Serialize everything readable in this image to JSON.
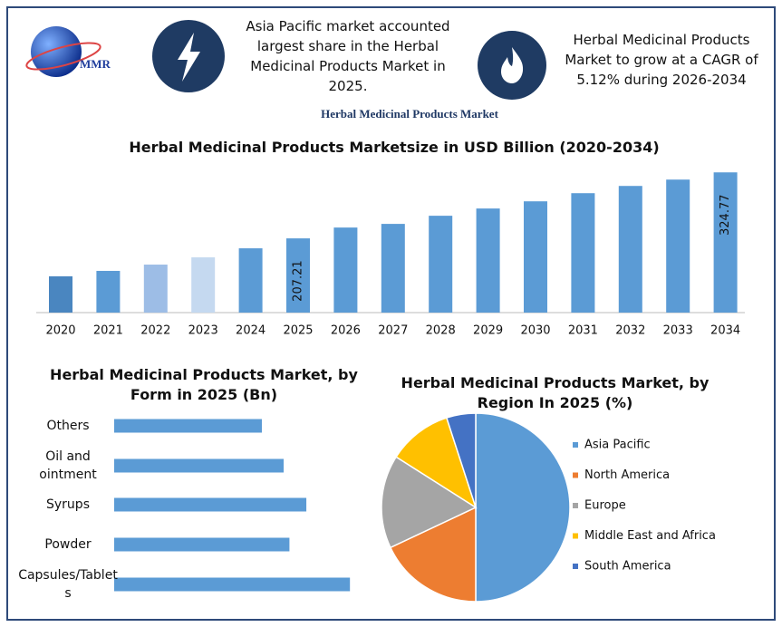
{
  "header": {
    "logo_text": "MMR",
    "stat1": "Asia Pacific market accounted largest share in the Herbal Medicinal Products Market in 2025.",
    "stat2": "Herbal Medicinal Products Market to grow at a CAGR of 5.12% during 2026-2034"
  },
  "title": "Herbal Medicinal Products Market",
  "chart_data": [
    {
      "type": "bar",
      "title": "Herbal Medicinal Products Marketsize in USD Billion (2020-2034)",
      "categories": [
        "2020",
        "2021",
        "2022",
        "2023",
        "2024",
        "2025",
        "2026",
        "2027",
        "2028",
        "2029",
        "2030",
        "2031",
        "2032",
        "2033",
        "2034"
      ],
      "values": [
        139.6,
        149.3,
        160.5,
        173.4,
        189.5,
        207.21,
        226.5,
        233.0,
        247.5,
        260.4,
        273.2,
        287.7,
        300.6,
        311.9,
        324.77
      ],
      "value_labels": [
        null,
        null,
        null,
        null,
        null,
        "207.21",
        null,
        null,
        null,
        null,
        null,
        null,
        null,
        null,
        "324.77"
      ],
      "colors": [
        "#4a86c0",
        "#5b9bd5",
        "#9dbde6",
        "#c5d9f0",
        "#5b9bd5",
        "#5b9bd5",
        "#5b9bd5",
        "#5b9bd5",
        "#5b9bd5",
        "#5b9bd5",
        "#5b9bd5",
        "#5b9bd5",
        "#5b9bd5",
        "#5b9bd5",
        "#5b9bd5"
      ],
      "ylim": [
        75,
        330
      ]
    },
    {
      "type": "bar",
      "orientation": "horizontal",
      "title": "Herbal Medicinal Products Market, by Form in 2025 (Bn)",
      "categories": [
        "Others",
        "Oil and ointment",
        "Syrups",
        "Powder",
        "Capsules/Tablets"
      ],
      "values": [
        33.2,
        38.1,
        43.2,
        39.4,
        53.0
      ],
      "color": "#5b9bd5",
      "xlim": [
        0,
        55
      ]
    },
    {
      "type": "pie",
      "title": "Herbal Medicinal Products Market, by Region In 2025 (%)",
      "categories": [
        "Asia Pacific",
        "North America",
        "Europe",
        "Middle East and Africa",
        "South America"
      ],
      "values": [
        50,
        18,
        16,
        11,
        5
      ],
      "colors": [
        "#5b9bd5",
        "#ed7d31",
        "#a5a5a5",
        "#ffc000",
        "#4472c4"
      ]
    }
  ]
}
